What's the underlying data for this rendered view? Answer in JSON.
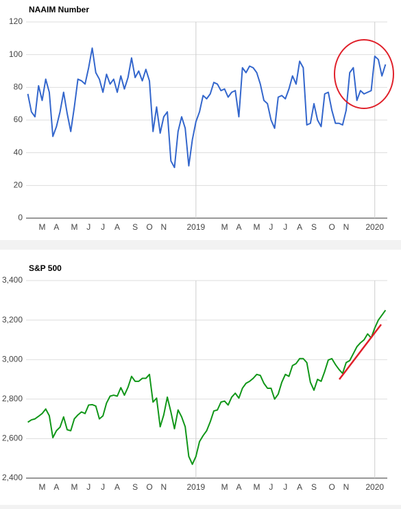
{
  "chart_data": [
    {
      "type": "line",
      "title": "NAAIM Number",
      "categories": [
        null,
        null,
        null,
        null,
        "M",
        null,
        null,
        null,
        "A",
        null,
        null,
        null,
        null,
        "M",
        null,
        null,
        null,
        "J",
        null,
        null,
        null,
        "J",
        null,
        null,
        null,
        "A",
        null,
        null,
        null,
        null,
        "S",
        null,
        null,
        null,
        "O",
        null,
        null,
        null,
        "N",
        null,
        null,
        null,
        null,
        null,
        null,
        null,
        null,
        "2019",
        null,
        null,
        null,
        null,
        null,
        null,
        null,
        "M",
        null,
        null,
        null,
        "A",
        null,
        null,
        null,
        null,
        "M",
        null,
        null,
        null,
        "J",
        null,
        null,
        null,
        "J",
        null,
        null,
        null,
        "A",
        null,
        null,
        null,
        "S",
        null,
        null,
        null,
        null,
        "O",
        null,
        null,
        null,
        "N",
        null,
        null,
        null,
        null,
        null,
        null,
        null,
        "2020",
        null,
        null,
        null
      ],
      "values": [
        76,
        65,
        62,
        81,
        72,
        85,
        77,
        50,
        56,
        65,
        77,
        64,
        53,
        68,
        85,
        84,
        82,
        92,
        104,
        89,
        85,
        77,
        88,
        82,
        85,
        77,
        87,
        79,
        86,
        98,
        86,
        90,
        84,
        91,
        84,
        53,
        68,
        52,
        62,
        65,
        35,
        31,
        53,
        62,
        55,
        32,
        48,
        59,
        65,
        75,
        73,
        76,
        83,
        82,
        78,
        79,
        74,
        77,
        78,
        62,
        92,
        89,
        93,
        92,
        89,
        82,
        72,
        70,
        60,
        55,
        74,
        75,
        73,
        79,
        87,
        82,
        96,
        92,
        57,
        58,
        70,
        60,
        56,
        76,
        77,
        66,
        58,
        58,
        57,
        66,
        89,
        92,
        72,
        78,
        76,
        77,
        78,
        99,
        97,
        87,
        94
      ],
      "color": "#3366cc",
      "ylim": [
        0,
        120
      ],
      "yticks": [
        0,
        20,
        40,
        60,
        80,
        100,
        120
      ],
      "grid": true
    },
    {
      "type": "line",
      "title": "S&P 500",
      "categories": [
        null,
        null,
        null,
        null,
        "M",
        null,
        null,
        null,
        "A",
        null,
        null,
        null,
        null,
        "M",
        null,
        null,
        null,
        "J",
        null,
        null,
        null,
        "J",
        null,
        null,
        null,
        "A",
        null,
        null,
        null,
        null,
        "S",
        null,
        null,
        null,
        "O",
        null,
        null,
        null,
        "N",
        null,
        null,
        null,
        null,
        null,
        null,
        null,
        null,
        "2019",
        null,
        null,
        null,
        null,
        null,
        null,
        null,
        "M",
        null,
        null,
        null,
        "A",
        null,
        null,
        null,
        null,
        "M",
        null,
        null,
        null,
        "J",
        null,
        null,
        null,
        "J",
        null,
        null,
        null,
        "A",
        null,
        null,
        null,
        "S",
        null,
        null,
        null,
        null,
        "O",
        null,
        null,
        null,
        "N",
        null,
        null,
        null,
        null,
        null,
        null,
        null,
        "2020",
        null,
        null,
        null
      ],
      "values": [
        2683,
        2695,
        2700,
        2713,
        2727,
        2750,
        2716,
        2605,
        2640,
        2658,
        2710,
        2645,
        2640,
        2700,
        2720,
        2735,
        2727,
        2770,
        2772,
        2765,
        2700,
        2715,
        2780,
        2815,
        2820,
        2815,
        2858,
        2820,
        2860,
        2915,
        2890,
        2890,
        2905,
        2905,
        2925,
        2785,
        2805,
        2660,
        2720,
        2810,
        2735,
        2650,
        2745,
        2710,
        2660,
        2510,
        2470,
        2510,
        2585,
        2615,
        2640,
        2685,
        2740,
        2745,
        2785,
        2790,
        2770,
        2810,
        2830,
        2805,
        2855,
        2880,
        2890,
        2905,
        2925,
        2920,
        2880,
        2855,
        2855,
        2800,
        2825,
        2885,
        2925,
        2915,
        2970,
        2980,
        3005,
        3005,
        2985,
        2885,
        2845,
        2900,
        2890,
        2940,
        2998,
        3005,
        2975,
        2950,
        2930,
        2985,
        2995,
        3030,
        3065,
        3085,
        3100,
        3130,
        3110,
        3160,
        3200,
        3225,
        3250
      ],
      "color": "#109618",
      "ylim": [
        2400,
        3400
      ],
      "yticks": [
        {
          "value": 2400,
          "label": "2,400"
        },
        {
          "value": 2600,
          "label": "2,600"
        },
        {
          "value": 2800,
          "label": "2,800"
        },
        {
          "value": 3000,
          "label": "3,000"
        },
        {
          "value": 3200,
          "label": "3,200"
        },
        {
          "value": 3400,
          "label": "3,400"
        }
      ],
      "grid": true
    }
  ]
}
